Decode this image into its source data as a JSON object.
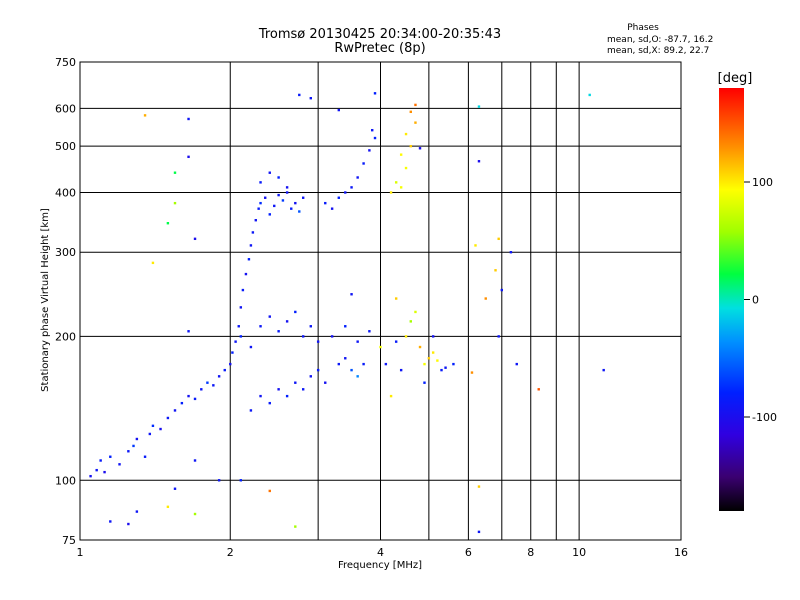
{
  "chart_data": {
    "type": "scatter",
    "title": "Tromsø 20130425 20:34:00-20:35:43",
    "subtitle": "RwPretec (8p)",
    "xlabel": "Frequency [MHz]",
    "ylabel": "Stationary phase Virtual Height [km]",
    "x_scale": "log",
    "y_scale": "log",
    "xlim": [
      1,
      16
    ],
    "ylim": [
      75,
      750
    ],
    "x_ticks": [
      "1",
      "2",
      "4",
      "6",
      "8",
      "10",
      "16"
    ],
    "x_tick_values": [
      1,
      2,
      4,
      6,
      8,
      10,
      16
    ],
    "y_ticks": [
      "750",
      "600",
      "500",
      "400",
      "300",
      "200",
      "100",
      "75"
    ],
    "y_tick_values": [
      750,
      600,
      500,
      400,
      300,
      200,
      100,
      75
    ],
    "x_minor_grid": [
      3,
      5,
      7,
      9
    ],
    "grid": true,
    "stats_header": "Phases",
    "stats_o": "mean, sd,O: -87.7, 16.2",
    "stats_x": "mean, sd,X: 89.2, 22.7",
    "colorbar": {
      "label": "[deg]",
      "range": [
        -180,
        180
      ],
      "ticks": [
        "100",
        "0",
        "-100"
      ],
      "tick_values": [
        100,
        0,
        -100
      ]
    },
    "series": [
      {
        "color_values": "phase in degrees",
        "points": [
          [
            1.05,
            102,
            -95
          ],
          [
            1.08,
            105,
            -90
          ],
          [
            1.1,
            110,
            -85
          ],
          [
            1.12,
            104,
            -100
          ],
          [
            1.15,
            112,
            -80
          ],
          [
            1.2,
            108,
            -92
          ],
          [
            1.25,
            115,
            -88
          ],
          [
            1.28,
            118,
            -70
          ],
          [
            1.3,
            122,
            -95
          ],
          [
            1.35,
            112,
            -85
          ],
          [
            1.38,
            125,
            -90
          ],
          [
            1.4,
            130,
            -75
          ],
          [
            1.45,
            128,
            -98
          ],
          [
            1.5,
            135,
            -88
          ],
          [
            1.55,
            140,
            -92
          ],
          [
            1.6,
            145,
            -80
          ],
          [
            1.65,
            150,
            -95
          ],
          [
            1.7,
            148,
            -85
          ],
          [
            1.75,
            155,
            -90
          ],
          [
            1.8,
            160,
            -70
          ],
          [
            1.85,
            158,
            -88
          ],
          [
            1.9,
            165,
            -92
          ],
          [
            1.95,
            170,
            -85
          ],
          [
            2.0,
            175,
            -95
          ],
          [
            2.02,
            185,
            -80
          ],
          [
            2.05,
            195,
            -90
          ],
          [
            2.08,
            210,
            -88
          ],
          [
            2.1,
            230,
            -92
          ],
          [
            2.12,
            250,
            -85
          ],
          [
            2.15,
            270,
            -95
          ],
          [
            2.18,
            290,
            -80
          ],
          [
            2.2,
            310,
            -90
          ],
          [
            2.22,
            330,
            -88
          ],
          [
            2.25,
            350,
            -92
          ],
          [
            2.28,
            370,
            -85
          ],
          [
            2.3,
            380,
            -75
          ],
          [
            2.35,
            390,
            -95
          ],
          [
            2.4,
            360,
            -80
          ],
          [
            2.45,
            375,
            -90
          ],
          [
            2.5,
            395,
            -88
          ],
          [
            2.55,
            385,
            -70
          ],
          [
            2.6,
            400,
            -92
          ],
          [
            2.65,
            370,
            -85
          ],
          [
            2.7,
            380,
            -95
          ],
          [
            2.75,
            365,
            -60
          ],
          [
            2.8,
            390,
            -90
          ],
          [
            2.3,
            420,
            -85
          ],
          [
            2.4,
            440,
            -92
          ],
          [
            2.5,
            430,
            -80
          ],
          [
            2.6,
            410,
            -95
          ],
          [
            2.2,
            140,
            -88
          ],
          [
            2.3,
            150,
            -92
          ],
          [
            2.4,
            145,
            -85
          ],
          [
            2.5,
            155,
            -95
          ],
          [
            2.6,
            150,
            -80
          ],
          [
            2.7,
            160,
            -90
          ],
          [
            2.8,
            155,
            -88
          ],
          [
            2.9,
            165,
            -92
          ],
          [
            3.0,
            170,
            -85
          ],
          [
            3.1,
            160,
            -95
          ],
          [
            2.1,
            200,
            -80
          ],
          [
            2.2,
            190,
            -90
          ],
          [
            2.3,
            210,
            -88
          ],
          [
            2.4,
            220,
            -92
          ],
          [
            2.5,
            205,
            -85
          ],
          [
            2.6,
            215,
            -95
          ],
          [
            2.7,
            225,
            -80
          ],
          [
            2.8,
            200,
            -90
          ],
          [
            2.9,
            210,
            -88
          ],
          [
            3.0,
            195,
            -92
          ],
          [
            3.1,
            380,
            -85
          ],
          [
            3.2,
            370,
            -95
          ],
          [
            3.3,
            390,
            -80
          ],
          [
            3.4,
            400,
            -90
          ],
          [
            3.5,
            410,
            -88
          ],
          [
            3.6,
            430,
            -92
          ],
          [
            3.7,
            460,
            -85
          ],
          [
            3.8,
            490,
            -95
          ],
          [
            3.9,
            520,
            -80
          ],
          [
            3.85,
            540,
            -90
          ],
          [
            3.3,
            175,
            -88
          ],
          [
            3.4,
            180,
            -92
          ],
          [
            3.5,
            170,
            -60
          ],
          [
            3.6,
            165,
            -40
          ],
          [
            3.7,
            175,
            -85
          ],
          [
            3.2,
            200,
            -95
          ],
          [
            3.4,
            210,
            -80
          ],
          [
            3.6,
            195,
            -90
          ],
          [
            3.8,
            205,
            -88
          ],
          [
            3.5,
            245,
            -92
          ],
          [
            4.5,
            450,
            90
          ],
          [
            4.6,
            500,
            110
          ],
          [
            4.7,
            560,
            120
          ],
          [
            4.5,
            530,
            100
          ],
          [
            4.4,
            480,
            95
          ],
          [
            4.6,
            590,
            130
          ],
          [
            4.3,
            420,
            80
          ],
          [
            4.2,
            400,
            100
          ],
          [
            4.4,
            410,
            90
          ],
          [
            4.7,
            610,
            140
          ],
          [
            5.0,
            180,
            110
          ],
          [
            5.1,
            185,
            100
          ],
          [
            5.2,
            178,
            95
          ],
          [
            4.8,
            190,
            120
          ],
          [
            4.9,
            175,
            90
          ],
          [
            4.5,
            200,
            100
          ],
          [
            4.6,
            215,
            60
          ],
          [
            4.7,
            225,
            80
          ],
          [
            4.3,
            240,
            110
          ],
          [
            4.4,
            170,
            -90
          ],
          [
            5.3,
            170,
            -85
          ],
          [
            5.4,
            172,
            -90
          ],
          [
            5.1,
            200,
            -95
          ],
          [
            4.9,
            160,
            -80
          ],
          [
            4.2,
            150,
            100
          ],
          [
            4.0,
            190,
            90
          ],
          [
            4.1,
            175,
            -90
          ],
          [
            4.3,
            195,
            -85
          ],
          [
            5.6,
            175,
            -80
          ],
          [
            6.1,
            168,
            130
          ],
          [
            1.35,
            580,
            120
          ],
          [
            1.65,
            570,
            -90
          ],
          [
            1.55,
            440,
            20
          ],
          [
            1.65,
            475,
            -100
          ],
          [
            1.5,
            345,
            20
          ],
          [
            1.7,
            320,
            -100
          ],
          [
            1.4,
            285,
            100
          ],
          [
            1.55,
            380,
            60
          ],
          [
            1.65,
            205,
            -90
          ],
          [
            2.75,
            640,
            -85
          ],
          [
            2.9,
            630,
            -90
          ],
          [
            3.3,
            595,
            -92
          ],
          [
            3.9,
            645,
            -80
          ],
          [
            4.8,
            495,
            -100
          ],
          [
            6.3,
            605,
            -10
          ],
          [
            10.5,
            640,
            -10
          ],
          [
            6.3,
            465,
            -100
          ],
          [
            6.2,
            310,
            100
          ],
          [
            6.9,
            320,
            110
          ],
          [
            7.3,
            300,
            -90
          ],
          [
            6.8,
            275,
            110
          ],
          [
            7.0,
            250,
            -90
          ],
          [
            6.5,
            240,
            130
          ],
          [
            6.9,
            200,
            -90
          ],
          [
            7.5,
            175,
            -90
          ],
          [
            8.3,
            155,
            150
          ],
          [
            11.2,
            170,
            -90
          ],
          [
            6.3,
            97,
            110
          ],
          [
            6.3,
            78,
            -90
          ],
          [
            1.9,
            100,
            -90
          ],
          [
            1.3,
            86,
            -90
          ],
          [
            1.5,
            88,
            100
          ],
          [
            1.7,
            85,
            60
          ],
          [
            1.15,
            82,
            -90
          ],
          [
            1.25,
            81,
            -100
          ],
          [
            2.1,
            100,
            -80
          ],
          [
            2.4,
            95,
            140
          ],
          [
            2.7,
            80,
            60
          ],
          [
            1.7,
            110,
            -90
          ],
          [
            1.55,
            96,
            -90
          ]
        ]
      }
    ]
  }
}
